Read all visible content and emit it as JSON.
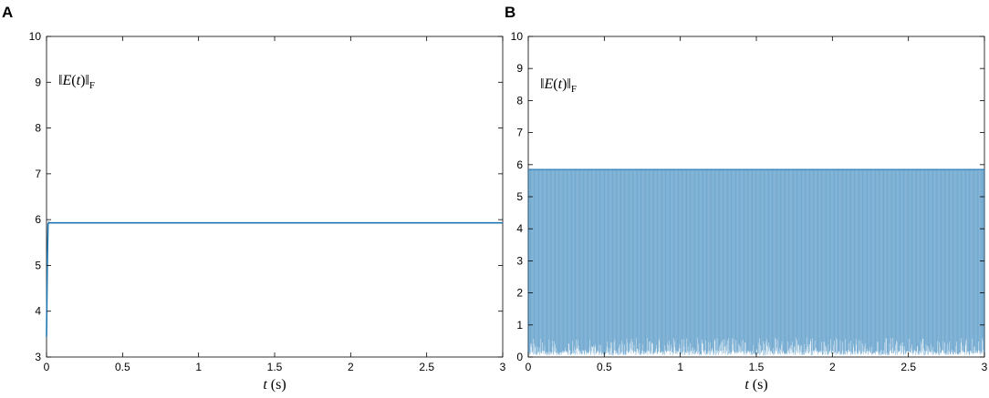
{
  "chart_data": [
    {
      "panel": "A",
      "type": "line",
      "xlabel": "t (s)",
      "ylabel": "",
      "annotation": "‖E(t)‖F",
      "xlim": [
        0,
        3
      ],
      "ylim": [
        3,
        10
      ],
      "xticks": [
        "0",
        "0.5",
        "1",
        "1.5",
        "2",
        "2.5",
        "3"
      ],
      "yticks": [
        "3",
        "4",
        "5",
        "6",
        "7",
        "8",
        "9",
        "10"
      ],
      "grid": false,
      "color": "#1f77b4",
      "series": [
        {
          "x": [
            0,
            0.003,
            0.006,
            0.01,
            0.015,
            0.02,
            3
          ],
          "y": [
            3.45,
            4.4,
            5.2,
            5.9,
            5.94,
            5.93,
            5.93
          ]
        }
      ]
    },
    {
      "panel": "B",
      "type": "line",
      "xlabel": "t (s)",
      "ylabel": "",
      "annotation": "‖E(t)‖F",
      "xlim": [
        0,
        3
      ],
      "ylim": [
        0,
        10
      ],
      "xticks": [
        "0",
        "0.5",
        "1",
        "1.5",
        "2",
        "2.5",
        "3"
      ],
      "yticks": [
        "0",
        "1",
        "2",
        "3",
        "4",
        "5",
        "6",
        "7",
        "8",
        "9",
        "10"
      ],
      "grid": false,
      "color": "#1f77b4",
      "oscillation": {
        "upper": 5.85,
        "lower_min": 0.05,
        "lower_max": 0.6
      }
    }
  ]
}
